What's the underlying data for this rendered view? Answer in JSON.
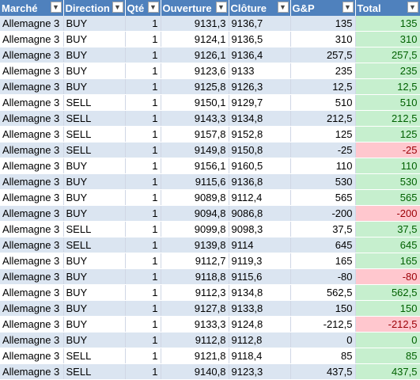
{
  "headers": [
    "Marché",
    "Direction",
    "Qté",
    "Ouverture",
    "Clôture",
    "G&P",
    "Total"
  ],
  "filter_icon": "chevron-down-icon",
  "colors": {
    "header_bg": "#4f81bd",
    "band": "#dbe5f1",
    "positive_bg": "#c6efce",
    "positive_fg": "#006100",
    "negative_bg": "#ffc7ce",
    "negative_fg": "#9c0006"
  },
  "rows": [
    [
      "Allemagne 3",
      "BUY",
      "1",
      "9131,3",
      "9136,7",
      "135",
      "135"
    ],
    [
      "Allemagne 3",
      "BUY",
      "1",
      "9124,1",
      "9136,5",
      "310",
      "310"
    ],
    [
      "Allemagne 3",
      "BUY",
      "1",
      "9126,1",
      "9136,4",
      "257,5",
      "257,5"
    ],
    [
      "Allemagne 3",
      "BUY",
      "1",
      "9123,6",
      "9133",
      "235",
      "235"
    ],
    [
      "Allemagne 3",
      "BUY",
      "1",
      "9125,8",
      "9126,3",
      "12,5",
      "12,5"
    ],
    [
      "Allemagne 3",
      "SELL",
      "1",
      "9150,1",
      "9129,7",
      "510",
      "510"
    ],
    [
      "Allemagne 3",
      "SELL",
      "1",
      "9143,3",
      "9134,8",
      "212,5",
      "212,5"
    ],
    [
      "Allemagne 3",
      "SELL",
      "1",
      "9157,8",
      "9152,8",
      "125",
      "125"
    ],
    [
      "Allemagne 3",
      "SELL",
      "1",
      "9149,8",
      "9150,8",
      "-25",
      "-25"
    ],
    [
      "Allemagne 3",
      "BUY",
      "1",
      "9156,1",
      "9160,5",
      "110",
      "110"
    ],
    [
      "Allemagne 3",
      "BUY",
      "1",
      "9115,6",
      "9136,8",
      "530",
      "530"
    ],
    [
      "Allemagne 3",
      "BUY",
      "1",
      "9089,8",
      "9112,4",
      "565",
      "565"
    ],
    [
      "Allemagne 3",
      "BUY",
      "1",
      "9094,8",
      "9086,8",
      "-200",
      "-200"
    ],
    [
      "Allemagne 3",
      "SELL",
      "1",
      "9099,8",
      "9098,3",
      "37,5",
      "37,5"
    ],
    [
      "Allemagne 3",
      "SELL",
      "1",
      "9139,8",
      "9114",
      "645",
      "645"
    ],
    [
      "Allemagne 3",
      "BUY",
      "1",
      "9112,7",
      "9119,3",
      "165",
      "165"
    ],
    [
      "Allemagne 3",
      "BUY",
      "1",
      "9118,8",
      "9115,6",
      "-80",
      "-80"
    ],
    [
      "Allemagne 3",
      "BUY",
      "1",
      "9112,3",
      "9134,8",
      "562,5",
      "562,5"
    ],
    [
      "Allemagne 3",
      "BUY",
      "1",
      "9127,8",
      "9133,8",
      "150",
      "150"
    ],
    [
      "Allemagne 3",
      "BUY",
      "1",
      "9133,3",
      "9124,8",
      "-212,5",
      "-212,5"
    ],
    [
      "Allemagne 3",
      "BUY",
      "1",
      "9112,8",
      "9112,8",
      "0",
      "0"
    ],
    [
      "Allemagne 3",
      "SELL",
      "1",
      "9121,8",
      "9118,4",
      "85",
      "85"
    ],
    [
      "Allemagne 3",
      "SELL",
      "1",
      "9140,8",
      "9123,3",
      "437,5",
      "437,5"
    ]
  ]
}
